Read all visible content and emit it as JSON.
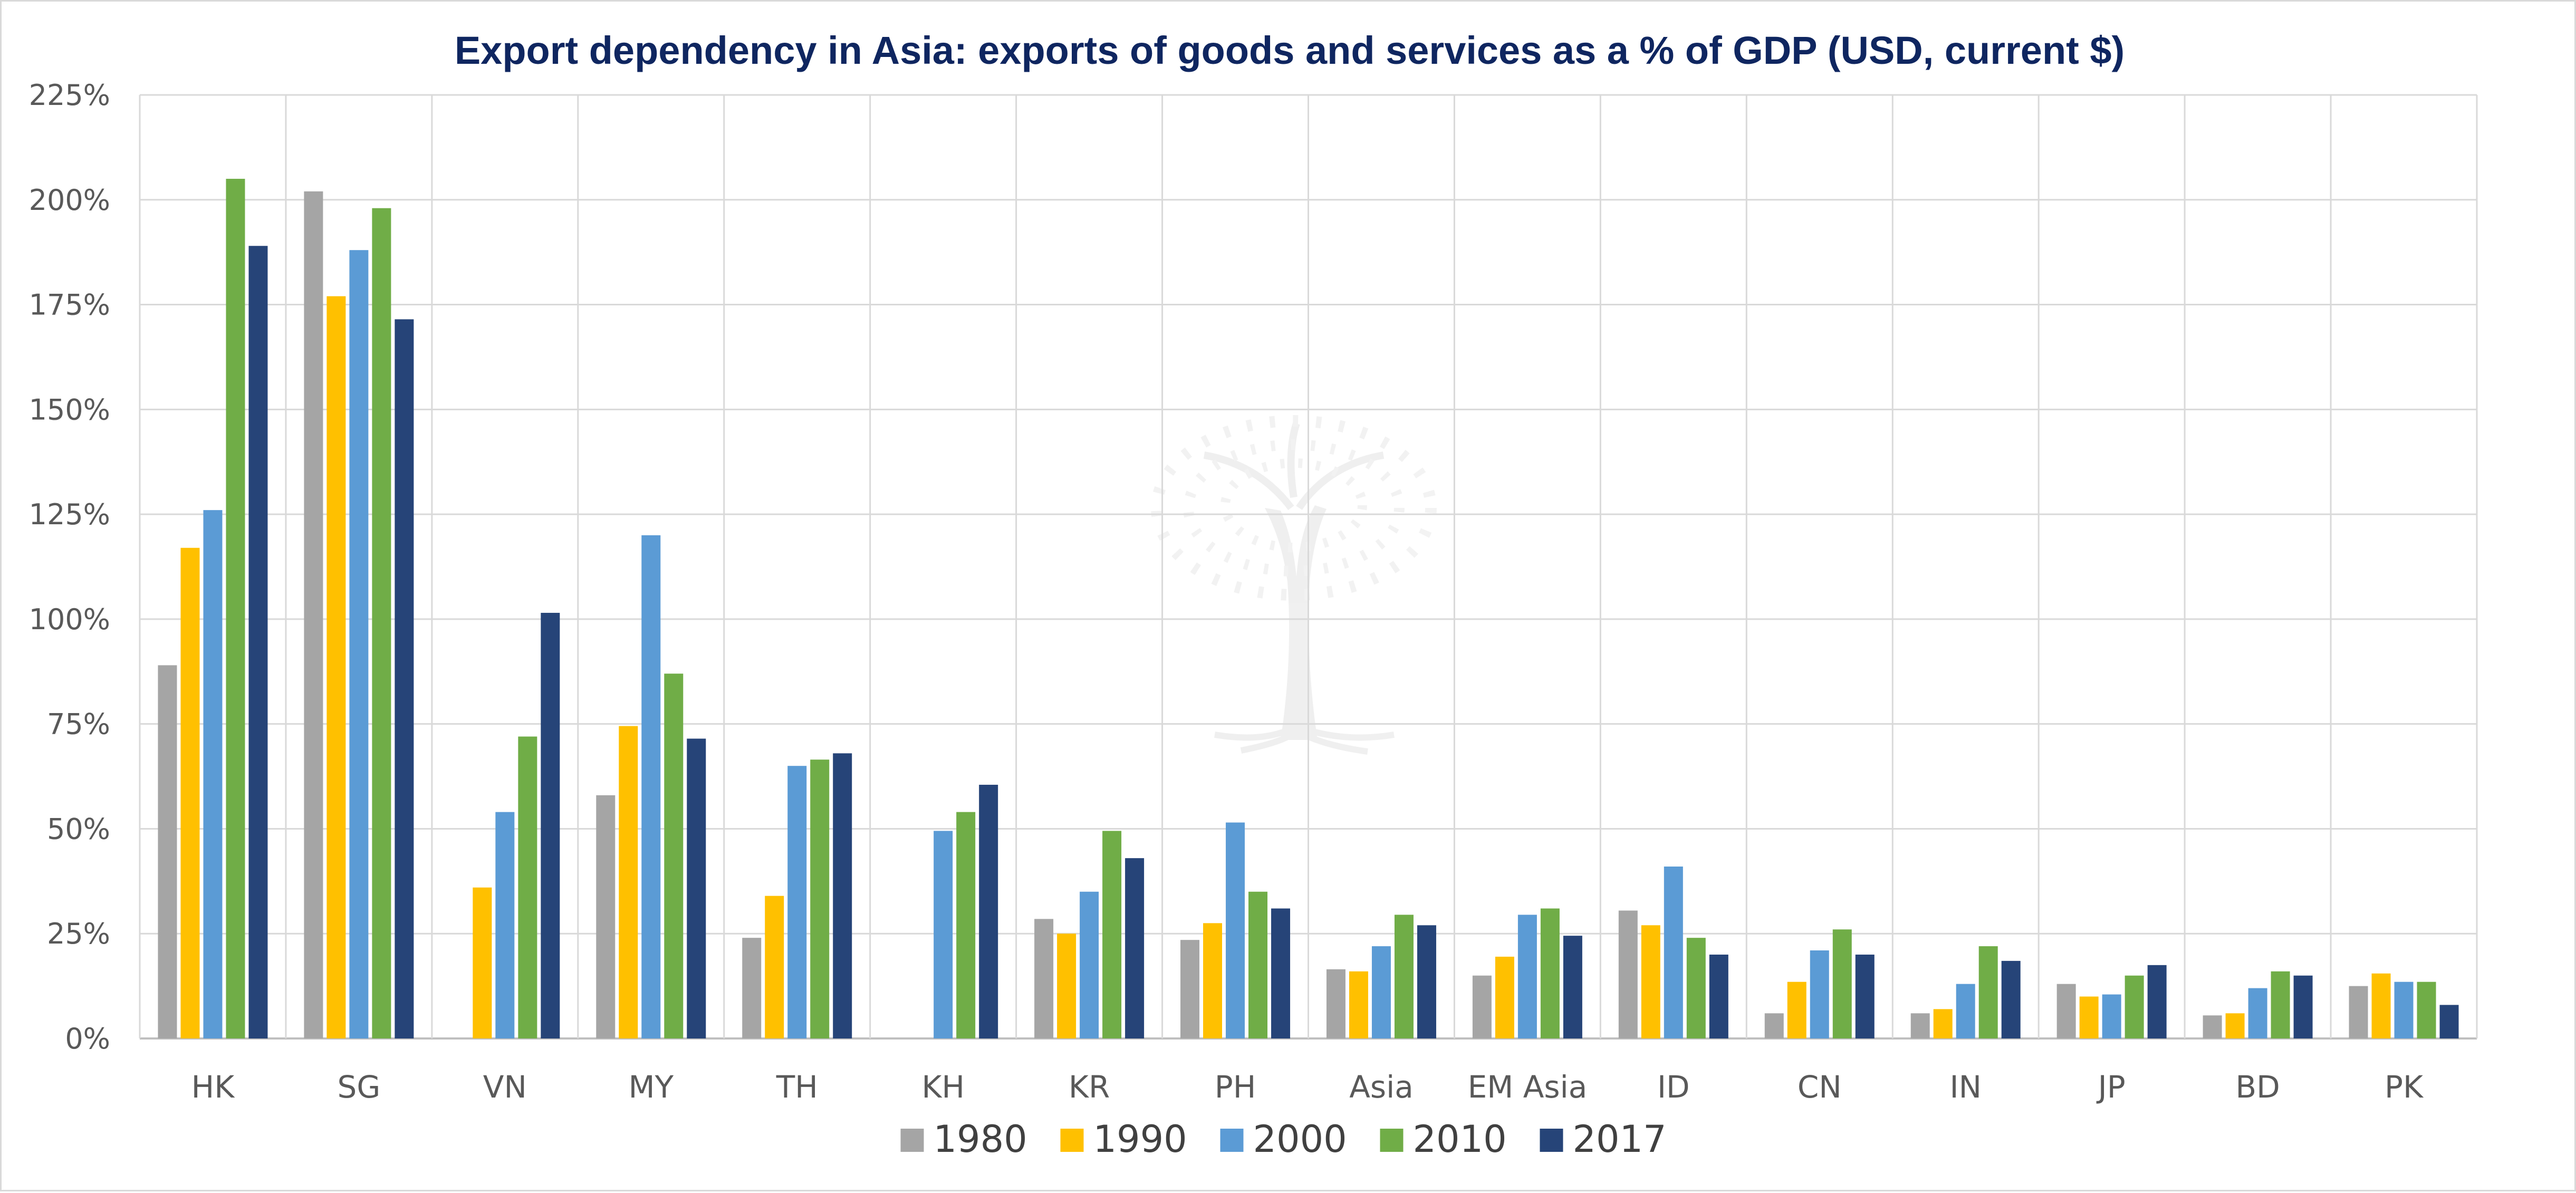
{
  "chart_data": {
    "type": "bar",
    "title": "Export dependency in Asia: exports of goods and services as a % of GDP (USD, current $)",
    "xlabel": "",
    "ylabel": "",
    "ylim": [
      0,
      225
    ],
    "yticks": [
      "0%",
      "25%",
      "50%",
      "75%",
      "100%",
      "125%",
      "150%",
      "175%",
      "200%",
      "225%"
    ],
    "ytick_values": [
      0,
      25,
      50,
      75,
      100,
      125,
      150,
      175,
      200,
      225
    ],
    "grid": true,
    "legend_position": "bottom",
    "categories": [
      "HK",
      "SG",
      "VN",
      "MY",
      "TH",
      "KH",
      "KR",
      "PH",
      "Asia",
      "EM Asia",
      "ID",
      "CN",
      "IN",
      "JP",
      "BD",
      "PK"
    ],
    "series": [
      {
        "name": "1980",
        "color": "#a5a5a5",
        "values": [
          89,
          202,
          null,
          58,
          24,
          null,
          28.5,
          23.5,
          16.5,
          15,
          30.5,
          6,
          6,
          13,
          5.5,
          12.5
        ]
      },
      {
        "name": "1990",
        "color": "#ffc000",
        "values": [
          117,
          177,
          36,
          74.5,
          34,
          null,
          25,
          27.5,
          16,
          19.5,
          27,
          13.5,
          7,
          10,
          6,
          15.5
        ]
      },
      {
        "name": "2000",
        "color": "#5b9bd5",
        "values": [
          126,
          188,
          54,
          120,
          65,
          49.5,
          35,
          51.5,
          22,
          29.5,
          41,
          21,
          13,
          10.5,
          12,
          13.5
        ]
      },
      {
        "name": "2010",
        "color": "#70ad47",
        "values": [
          205,
          198,
          72,
          87,
          66.5,
          54,
          49.5,
          35,
          29.5,
          31,
          24,
          26,
          22,
          15,
          16,
          13.5
        ]
      },
      {
        "name": "2017",
        "color": "#264478",
        "values": [
          189,
          171.5,
          101.5,
          71.5,
          68,
          60.5,
          43,
          31,
          27,
          24.5,
          20,
          20,
          18.5,
          17.5,
          15,
          8
        ]
      }
    ]
  }
}
